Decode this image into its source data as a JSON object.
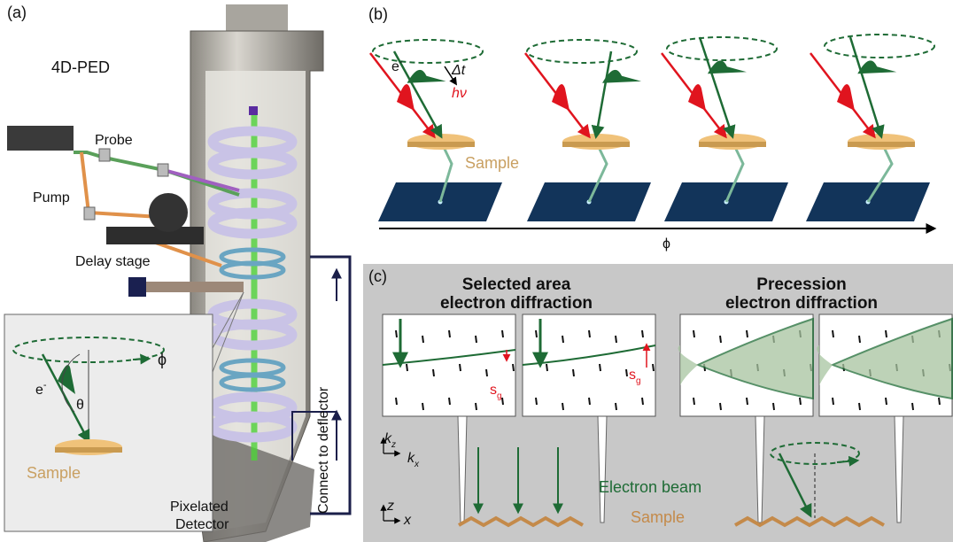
{
  "panel_a": {
    "label": "(a)",
    "title": "4D-PED",
    "probe": "Probe",
    "pump": "Pump",
    "delay_stage": "Delay stage",
    "inset": {
      "electron": {
        "base": "e",
        "sup": "-"
      },
      "azimuth": "ϕ",
      "angle": "θ",
      "sample": "Sample"
    },
    "detector": [
      "Pixelated",
      "Detector"
    ],
    "deflector": "Connect to deflector"
  },
  "panel_b": {
    "label": "(b)",
    "delay": "Δt",
    "electron": {
      "base": "e",
      "sup": "-"
    },
    "photon": "hν",
    "sample": "Sample",
    "axis": "ϕ"
  },
  "panel_c": {
    "label": "(c)",
    "saed_title": [
      "Selected area",
      "electron diffraction"
    ],
    "ped_title": [
      "Precession",
      "electron diffraction"
    ],
    "excitation_errors": [
      {
        "base": "s",
        "sub": "g"
      },
      {
        "base": "s",
        "sub": "g"
      }
    ],
    "reciprocal_axes": {
      "vertical": {
        "base": "k",
        "sub": "z"
      },
      "horizontal": {
        "base": "k",
        "sub": "x"
      }
    },
    "real_axes": {
      "vertical": "z",
      "horizontal": "x"
    },
    "beam": "Electron beam",
    "sample": "Sample"
  }
}
